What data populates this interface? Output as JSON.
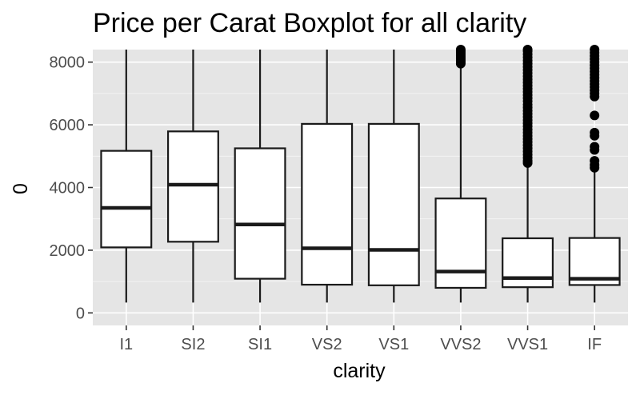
{
  "chart_data": {
    "type": "boxplot",
    "title": "Price per Carat Boxplot for all clarity",
    "xlabel": "clarity",
    "ylabel": "0",
    "ylim": [
      -400,
      8400
    ],
    "yticks": [
      0,
      2000,
      4000,
      6000,
      8000
    ],
    "grid": true,
    "categories": [
      "I1",
      "SI2",
      "SI1",
      "VS2",
      "VS1",
      "VVS2",
      "VVS1",
      "IF"
    ],
    "boxes": [
      {
        "category": "I1",
        "lower": 330,
        "q1": 2090,
        "median": 3350,
        "q3": 5170,
        "upper": 8400,
        "outliers": []
      },
      {
        "category": "SI2",
        "lower": 330,
        "q1": 2270,
        "median": 4090,
        "q3": 5790,
        "upper": 8400,
        "outliers": []
      },
      {
        "category": "SI1",
        "lower": 330,
        "q1": 1090,
        "median": 2820,
        "q3": 5250,
        "upper": 8400,
        "outliers": []
      },
      {
        "category": "VS2",
        "lower": 330,
        "q1": 900,
        "median": 2060,
        "q3": 6030,
        "upper": 8400,
        "outliers": []
      },
      {
        "category": "VS1",
        "lower": 330,
        "q1": 880,
        "median": 2010,
        "q3": 6030,
        "upper": 8400,
        "outliers": []
      },
      {
        "category": "VVS2",
        "lower": 330,
        "q1": 800,
        "median": 1320,
        "q3": 3650,
        "upper": 7900,
        "outliers": [
          7950,
          8000,
          8050,
          8100,
          8150,
          8200,
          8250,
          8300,
          8350,
          8400
        ]
      },
      {
        "category": "VVS1",
        "lower": 330,
        "q1": 820,
        "median": 1110,
        "q3": 2380,
        "upper": 4720,
        "outliers": [
          4780,
          4850,
          4950,
          5050,
          5150,
          5250,
          5350,
          5450,
          5550,
          5650,
          5750,
          5850,
          5950,
          6050,
          6150,
          6250,
          6350,
          6450,
          6550,
          6650,
          6750,
          6850,
          6950,
          7050,
          7150,
          7250,
          7350,
          7450,
          7550,
          7650,
          7750,
          7850,
          7950,
          8050,
          8150,
          8250,
          8350,
          8400
        ]
      },
      {
        "category": "IF",
        "lower": 330,
        "q1": 890,
        "median": 1090,
        "q3": 2390,
        "upper": 4580,
        "outliers": [
          4630,
          4720,
          4850,
          5200,
          5300,
          5650,
          5750,
          6300,
          6900,
          7000,
          7100,
          7200,
          7300,
          7400,
          7500,
          7600,
          7700,
          7800,
          7900,
          8000,
          8100,
          8200,
          8300,
          8400
        ]
      }
    ],
    "colors": {
      "panel": "#e5e5e5",
      "grid_major": "#ffffff",
      "box_fill": "#ffffff",
      "box_line": "#1a1a1a",
      "outlier": "#000000"
    }
  }
}
